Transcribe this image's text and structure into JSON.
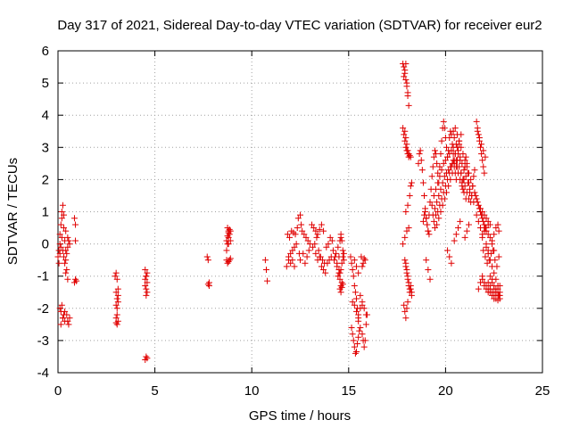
{
  "chart_data": {
    "type": "scatter",
    "title": "Day 317 of 2021, Sidereal Day-to-day VTEC variation (SDTVAR) for receiver eur2",
    "xlabel": "GPS time / hours",
    "ylabel": "SDTVAR / TECUs",
    "xlim": [
      0,
      25
    ],
    "ylim": [
      -4,
      6
    ],
    "x_ticks": [
      0,
      5,
      10,
      15,
      20,
      25
    ],
    "x_tick_labels": [
      "0",
      "5",
      "10",
      "15",
      "20",
      "25"
    ],
    "y_ticks": [
      -4,
      -3,
      -2,
      -1,
      0,
      1,
      2,
      3,
      4,
      5,
      6
    ],
    "y_tick_labels": [
      "-4",
      "-3",
      "-2",
      "-1",
      "0",
      "1",
      "2",
      "3",
      "4",
      "5",
      "6"
    ],
    "grid": true,
    "marker": "+",
    "color": "#e00000",
    "series": [
      {
        "name": "SDTVAR",
        "x": [
          0.0,
          0.05,
          0.1,
          0.1,
          0.15,
          0.2,
          0.2,
          0.25,
          0.3,
          0.3,
          0.35,
          0.4,
          0.4,
          0.45,
          0.5,
          0.05,
          0.1,
          0.15,
          0.2,
          0.25,
          0.3,
          0.35,
          0.4,
          0.45,
          0.5,
          0.55,
          0.6,
          0.1,
          0.15,
          0.2,
          0.25,
          0.3,
          0.35,
          0.15,
          0.25,
          0.35,
          0.45,
          0.5,
          0.55,
          0.6,
          0.4,
          0.5,
          0.9,
          0.85,
          0.9,
          0.95,
          0.85,
          0.9,
          2.95,
          3.0,
          3.05,
          3.0,
          3.05,
          3.1,
          3.0,
          3.05,
          3.1,
          3.0,
          3.05,
          3.1,
          3.05,
          3.0,
          3.1,
          4.5,
          4.55,
          4.6,
          4.5,
          4.55,
          4.6,
          4.5,
          4.55,
          4.6,
          4.55,
          4.5,
          4.6,
          4.55,
          7.7,
          7.75,
          7.8,
          7.8,
          7.75,
          8.7,
          8.75,
          8.8,
          8.85,
          8.9,
          8.7,
          8.75,
          8.8,
          8.85,
          8.9,
          8.75,
          8.8,
          8.85,
          8.7,
          8.8,
          8.9,
          8.75,
          8.8,
          10.7,
          10.75,
          10.8,
          11.8,
          11.9,
          12.0,
          12.1,
          12.2,
          12.3,
          11.85,
          11.95,
          12.05,
          12.15,
          12.25,
          11.9,
          12.0,
          12.1,
          12.2,
          12.35,
          12.4,
          12.5,
          12.55,
          12.45,
          12.5,
          12.6,
          12.7,
          12.8,
          12.9,
          12.65,
          12.75,
          12.85,
          12.95,
          13.0,
          13.1,
          13.2,
          13.3,
          13.4,
          13.5,
          13.6,
          13.7,
          13.15,
          13.25,
          13.35,
          13.45,
          13.55,
          13.65,
          13.75,
          13.3,
          13.4,
          13.5,
          13.6,
          13.7,
          13.8,
          13.9,
          14.0,
          14.1,
          13.85,
          13.95,
          14.05,
          14.15,
          14.2,
          14.3,
          14.4,
          14.5,
          14.25,
          14.35,
          14.45,
          14.55,
          14.6,
          14.6,
          14.65,
          14.7,
          14.75,
          14.5,
          14.55,
          14.6,
          14.65,
          14.4,
          14.5,
          14.55,
          14.45,
          14.6,
          14.65,
          14.7,
          14.75,
          14.55,
          14.6,
          14.65,
          14.7,
          15.1,
          15.15,
          15.2,
          15.25,
          15.3,
          15.35,
          15.4,
          15.45,
          15.5,
          15.15,
          15.2,
          15.25,
          15.3,
          15.35,
          15.4,
          15.45,
          15.5,
          15.55,
          15.2,
          15.3,
          15.4,
          15.5,
          15.6,
          15.7,
          15.5,
          15.6,
          15.7,
          15.75,
          15.8,
          15.85,
          15.9,
          15.95,
          15.6,
          15.7,
          15.8,
          15.9,
          15.65,
          15.75,
          15.85,
          15.7,
          15.8,
          15.3,
          15.4,
          15.5,
          17.8,
          17.85,
          17.9,
          17.95,
          18.0,
          18.05,
          18.1,
          17.85,
          17.9,
          17.95,
          18.0,
          18.05,
          17.9,
          17.95,
          18.0,
          18.05,
          18.1,
          18.15,
          18.2,
          17.8,
          17.85,
          17.9,
          17.95,
          18.0,
          18.05,
          18.1,
          17.9,
          17.95,
          18.0,
          18.05,
          18.1,
          18.15,
          18.2,
          18.25,
          17.95,
          18.0,
          18.05,
          18.1,
          18.15,
          18.2,
          18.25,
          17.85,
          17.9,
          17.95,
          18.0,
          18.05,
          17.8,
          17.9,
          18.0,
          18.1,
          17.95,
          18.05,
          18.15,
          18.2,
          18.25,
          18.6,
          18.65,
          18.7,
          18.75,
          18.8,
          18.85,
          18.9,
          18.95,
          19.0,
          19.05,
          19.1,
          19.15,
          19.2,
          19.25,
          19.3,
          19.35,
          19.4,
          19.45,
          19.5,
          19.55,
          19.6,
          19.65,
          19.7,
          19.75,
          19.8,
          19.85,
          19.9,
          19.95,
          20.0,
          20.05,
          20.1,
          20.15,
          20.2,
          20.25,
          20.3,
          20.35,
          20.4,
          20.45,
          20.5,
          20.55,
          20.6,
          20.65,
          20.7,
          20.75,
          20.8,
          20.85,
          20.9,
          20.95,
          21.0,
          21.05,
          21.1,
          21.15,
          21.2,
          21.25,
          21.3,
          21.35,
          21.4,
          21.45,
          21.5,
          19.3,
          19.4,
          19.5,
          19.6,
          19.7,
          19.8,
          19.9,
          20.0,
          20.1,
          20.2,
          20.3,
          20.4,
          20.5,
          20.6,
          20.7,
          20.8,
          20.9,
          21.0,
          21.1,
          21.2,
          19.35,
          19.45,
          19.55,
          19.65,
          19.75,
          19.85,
          19.95,
          20.05,
          20.15,
          20.25,
          20.35,
          20.45,
          20.55,
          20.65,
          20.75,
          20.85,
          20.95,
          21.05,
          19.4,
          19.5,
          19.6,
          19.7,
          19.8,
          19.9,
          20.0,
          20.1,
          20.2,
          20.3,
          20.4,
          20.5,
          20.6,
          20.7,
          20.8,
          19.45,
          19.55,
          19.65,
          19.75,
          19.85,
          19.95,
          20.05,
          20.15,
          20.25,
          20.35,
          20.45,
          20.55,
          20.65,
          18.85,
          18.9,
          18.95,
          19.0,
          19.05,
          19.1,
          19.15,
          20.4,
          20.5,
          20.6,
          20.7,
          20.8,
          20.9,
          21.0,
          21.1,
          21.2,
          21.3,
          21.4,
          20.45,
          20.55,
          20.65,
          20.75,
          20.85,
          20.95,
          21.05,
          21.15,
          21.25,
          21.35,
          21.45,
          19.0,
          19.1,
          19.2,
          20.1,
          20.2,
          20.3,
          20.45,
          20.55,
          20.65,
          20.75,
          21.0,
          21.1,
          21.2,
          21.6,
          21.65,
          21.7,
          21.75,
          21.8,
          21.85,
          21.9,
          21.95,
          22.0,
          21.65,
          21.75,
          21.85,
          21.95,
          22.05,
          21.8,
          21.9,
          22.0,
          22.1,
          22.2,
          22.3,
          22.0,
          22.1,
          22.2,
          22.3,
          22.4,
          22.5,
          22.1,
          22.2,
          22.3,
          22.4,
          22.5,
          22.6,
          22.7,
          22.2,
          22.3,
          22.4,
          22.5,
          22.6,
          22.7,
          22.75,
          22.8,
          22.3,
          22.4,
          22.5,
          22.6,
          22.7,
          22.8,
          22.4,
          22.5,
          22.6,
          22.7,
          22.75,
          22.1,
          22.2,
          21.7,
          21.8,
          21.9,
          22.0,
          22.1,
          22.2,
          22.3,
          22.4,
          22.5,
          22.6,
          22.7,
          22.8,
          21.9,
          22.0,
          22.1,
          22.2,
          22.3,
          22.4,
          22.5,
          22.6,
          22.7,
          22.8,
          21.9,
          22.0,
          22.1,
          22.2,
          21.95,
          22.05,
          22.15,
          22.25,
          22.35,
          22.45,
          22.55,
          22.65,
          22.75,
          21.5,
          21.6,
          21.7,
          21.8,
          21.9,
          22.0,
          22.1,
          21.55,
          21.65,
          21.75,
          21.85,
          21.95,
          22.05,
          21.6,
          21.7,
          21.8,
          21.9
        ],
        "y": [
          -0.4,
          -0.2,
          0.0,
          0.3,
          0.6,
          0.8,
          1.0,
          1.2,
          0.9,
          0.5,
          0.1,
          -0.2,
          -0.5,
          -0.8,
          -1.1,
          -0.6,
          -0.3,
          -0.1,
          0.2,
          -0.2,
          -0.4,
          -0.6,
          -0.9,
          -0.3,
          -0.1,
          0.1,
          0.0,
          -2.0,
          -2.1,
          -1.9,
          -2.3,
          -2.2,
          -2.4,
          -2.5,
          -2.3,
          -2.1,
          -2.2,
          -2.4,
          -2.5,
          -2.3,
          0.4,
          0.2,
          0.1,
          -1.2,
          -1.1,
          -1.15,
          0.8,
          0.6,
          -1.0,
          -0.9,
          -1.1,
          -1.5,
          -1.7,
          -1.6,
          -1.9,
          -2.0,
          -1.8,
          -2.3,
          -2.5,
          -2.4,
          -2.2,
          -2.45,
          -1.4,
          -0.8,
          -1.0,
          -1.2,
          -1.3,
          -1.4,
          -1.5,
          -1.1,
          -1.0,
          -0.9,
          -3.5,
          -3.6,
          -3.55,
          -1.6,
          -0.4,
          -0.5,
          -1.2,
          -1.3,
          -1.25,
          -0.5,
          -0.6,
          -0.55,
          -0.5,
          -0.45,
          0.1,
          0.0,
          0.2,
          0.3,
          0.4,
          0.5,
          0.4,
          0.45,
          -0.2,
          0.0,
          0.1,
          0.25,
          0.35,
          -0.5,
          -0.8,
          -1.15,
          -0.7,
          -0.5,
          -0.3,
          -0.2,
          -0.1,
          0.0,
          0.3,
          0.2,
          0.4,
          0.35,
          0.3,
          -0.4,
          -0.6,
          -0.5,
          -0.7,
          0.5,
          0.8,
          0.9,
          0.6,
          -0.3,
          -0.5,
          0.4,
          0.3,
          0.2,
          0.1,
          -0.3,
          -0.6,
          -0.4,
          -0.2,
          0.0,
          0.6,
          0.5,
          0.4,
          0.3,
          0.45,
          0.6,
          0.4,
          -0.1,
          0.0,
          0.2,
          -0.2,
          -0.4,
          -0.5,
          -0.6,
          -0.3,
          -0.5,
          -0.4,
          -0.7,
          -0.8,
          -0.9,
          -0.6,
          -0.5,
          -0.4,
          -0.1,
          0.0,
          0.2,
          0.1,
          -0.2,
          -0.4,
          -0.6,
          -0.8,
          -0.5,
          -0.3,
          -0.1,
          0.1,
          0.3,
          0.2,
          0.1,
          -0.2,
          -0.5,
          -0.9,
          -1.1,
          -1.3,
          -1.2,
          -0.7,
          -0.4,
          -0.9,
          -1.0,
          -0.8,
          -0.6,
          -0.4,
          -0.3,
          -1.4,
          -1.5,
          -1.35,
          -1.25,
          -0.4,
          -0.6,
          -0.8,
          -1.0,
          -1.3,
          -1.5,
          -1.7,
          -2.0,
          -2.3,
          -2.6,
          -2.8,
          -3.0,
          -3.2,
          -3.4,
          -3.35,
          -3.1,
          -2.9,
          -2.7,
          -1.8,
          -1.9,
          -2.1,
          -2.2,
          -2.0,
          -1.9,
          -2.4,
          -2.6,
          -2.8,
          -3.0,
          -3.2,
          -3.0,
          -2.5,
          -2.2,
          -1.6,
          -1.8,
          -2.0,
          -2.2,
          -0.4,
          -0.6,
          -0.5,
          -0.7,
          -0.45,
          -0.5,
          -0.7,
          -0.9,
          5.6,
          5.5,
          5.3,
          5.1,
          4.9,
          4.6,
          4.3,
          5.2,
          5.4,
          5.6,
          5.0,
          4.7,
          3.5,
          3.3,
          3.1,
          2.9,
          2.8,
          2.75,
          2.7,
          3.6,
          3.4,
          3.2,
          3.0,
          2.9,
          2.8,
          2.7,
          -0.5,
          -0.7,
          -0.9,
          -1.1,
          -1.3,
          -1.5,
          -1.4,
          -1.6,
          -0.6,
          -0.8,
          -1.0,
          -1.2,
          -1.4,
          -1.3,
          -1.5,
          -1.9,
          -2.1,
          -2.3,
          -2.0,
          -1.8,
          0.0,
          0.2,
          0.4,
          0.5,
          1.0,
          1.2,
          1.5,
          1.8,
          1.9,
          2.5,
          2.8,
          2.9,
          2.6,
          2.3,
          1.9,
          1.5,
          1.1,
          0.8,
          0.6,
          0.4,
          0.9,
          1.3,
          1.7,
          2.1,
          2.4,
          2.7,
          2.9,
          2.8,
          2.5,
          2.2,
          1.9,
          2.4,
          2.8,
          3.2,
          3.6,
          3.8,
          3.6,
          3.3,
          3.0,
          2.7,
          2.9,
          3.3,
          3.5,
          3.4,
          3.1,
          2.8,
          2.5,
          2.2,
          2.0,
          2.4,
          2.8,
          3.1,
          2.6,
          2.2,
          1.9,
          1.7,
          2.0,
          2.4,
          2.7,
          2.5,
          2.2,
          1.9,
          1.6,
          1.3,
          1.5,
          1.8,
          2.1,
          2.3,
          1.2,
          1.5,
          1.7,
          1.9,
          2.1,
          2.3,
          2.5,
          2.6,
          2.7,
          2.8,
          2.9,
          3.0,
          2.8,
          2.6,
          2.4,
          2.2,
          2.0,
          1.8,
          1.6,
          1.4,
          0.9,
          1.1,
          1.3,
          1.5,
          1.7,
          1.9,
          2.1,
          2.2,
          2.3,
          2.4,
          2.5,
          2.6,
          2.4,
          2.2,
          2.0,
          1.8,
          1.6,
          1.4,
          0.7,
          0.9,
          1.0,
          1.2,
          1.4,
          1.6,
          1.8,
          2.0,
          2.2,
          2.4,
          2.6,
          2.8,
          3.0,
          3.2,
          3.4,
          0.5,
          0.6,
          0.8,
          1.0,
          1.2,
          1.4,
          1.6,
          1.8,
          2.0,
          2.2,
          2.4,
          2.6,
          2.8,
          0.7,
          0.9,
          1.0,
          0.8,
          0.6,
          0.4,
          0.3,
          3.5,
          3.6,
          3.4,
          3.2,
          3.0,
          2.8,
          2.6,
          2.4,
          2.2,
          2.0,
          1.8,
          3.3,
          3.1,
          2.9,
          2.7,
          2.5,
          2.3,
          2.1,
          1.9,
          1.7,
          1.5,
          1.3,
          -0.5,
          -0.8,
          -1.1,
          -0.2,
          -0.4,
          -0.6,
          0.1,
          0.3,
          0.5,
          0.7,
          0.2,
          0.4,
          0.6,
          3.8,
          3.6,
          3.4,
          3.2,
          3.0,
          2.8,
          2.6,
          2.4,
          2.2,
          3.5,
          3.3,
          3.1,
          2.9,
          2.7,
          1.1,
          1.0,
          0.9,
          0.8,
          0.7,
          0.6,
          0.5,
          0.4,
          0.3,
          0.2,
          0.0,
          -0.2,
          -0.1,
          -0.3,
          -0.5,
          -0.7,
          -0.9,
          -1.1,
          -1.3,
          -1.2,
          -1.4,
          -1.5,
          -1.6,
          -1.7,
          -1.75,
          -1.6,
          -1.5,
          -1.0,
          -1.1,
          -1.3,
          -1.4,
          -1.6,
          -1.7,
          0.1,
          0.3,
          0.5,
          0.6,
          0.4,
          0.0,
          -0.2,
          -1.4,
          -1.2,
          -1.1,
          -1.3,
          -1.4,
          -1.5,
          -1.3,
          -1.2,
          -1.4,
          -1.5,
          -1.3,
          -1.6,
          -1.0,
          -1.2,
          -1.3,
          -1.4,
          -1.5,
          -1.6,
          -1.7,
          -1.5,
          -1.4,
          -1.3,
          0.2,
          0.4,
          0.5,
          0.6,
          -0.2,
          -0.4,
          -0.6,
          -0.5,
          -0.3,
          -0.2,
          -0.5,
          -0.7,
          -0.4,
          1.6,
          1.4,
          1.2,
          1.0,
          0.8,
          0.6,
          0.4,
          1.5,
          1.3,
          1.1,
          0.9,
          0.7,
          0.5,
          0.9,
          0.7,
          0.5,
          0.3
        ]
      }
    ]
  }
}
